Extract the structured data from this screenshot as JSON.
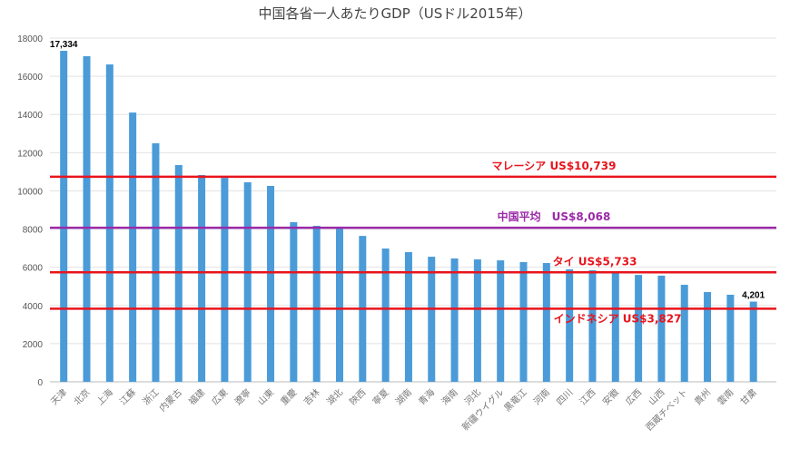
{
  "chart_data": {
    "type": "bar",
    "title": "中国各省一人あたりGDP（USドル2015年）",
    "xlabel": "",
    "ylabel": "",
    "ylim": [
      0,
      18000
    ],
    "yticks": [
      0,
      2000,
      4000,
      6000,
      8000,
      10000,
      12000,
      14000,
      16000,
      18000
    ],
    "grid": true,
    "categories": [
      "天津",
      "北京",
      "上海",
      "江蘇",
      "浙江",
      "内蒙古",
      "福建",
      "広東",
      "遼寧",
      "山東",
      "重慶",
      "吉林",
      "湖北",
      "陝西",
      "寧夏",
      "湖南",
      "青海",
      "海南",
      "河北",
      "新疆ウイグル",
      "黒竜江",
      "河南",
      "四川",
      "江西",
      "安徽",
      "広西",
      "山西",
      "西蔵チベット",
      "貴州",
      "雲南",
      "甘粛"
    ],
    "values": [
      17334,
      17050,
      16620,
      14100,
      12490,
      11350,
      10830,
      10680,
      10450,
      10260,
      8360,
      8170,
      8070,
      7640,
      6980,
      6790,
      6550,
      6460,
      6410,
      6360,
      6270,
      6220,
      5890,
      5840,
      5700,
      5600,
      5560,
      5080,
      4700,
      4560,
      4201
    ],
    "bar_color": "#4a9bd8",
    "data_labels": [
      {
        "index": 0,
        "text": "17,334"
      },
      {
        "index": 30,
        "text": "4,201"
      }
    ],
    "reference_lines": [
      {
        "label": "マレーシア US$10,739",
        "value": 10739,
        "color": "#e8141c"
      },
      {
        "label": "中国平均　US$8,068",
        "value": 8068,
        "color": "#9b2aa8"
      },
      {
        "label": "タイ US$5,733",
        "value": 5733,
        "color": "#e8141c"
      },
      {
        "label": "インドネシア US$3,827",
        "value": 3827,
        "color": "#e8141c"
      }
    ]
  }
}
